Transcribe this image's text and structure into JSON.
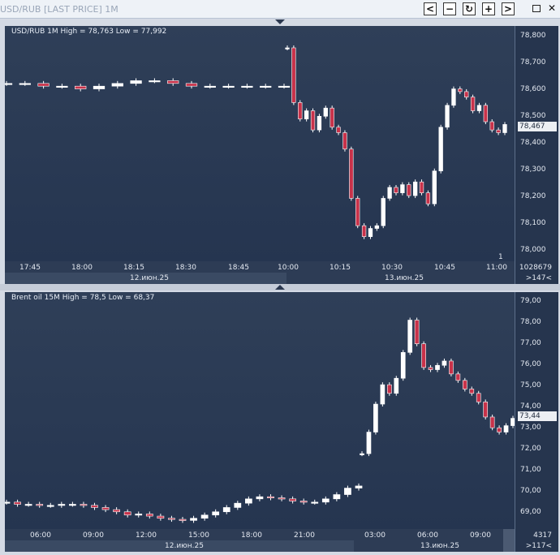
{
  "window": {
    "title": "USD/RUB [LAST PRICE]   1M",
    "buttons": {
      "back": "<",
      "minimize": "−",
      "refresh": "↻",
      "add": "+",
      "forward": ">"
    }
  },
  "top_chart": {
    "title": "USD/RUB 1M High = 78,763 Low = 77,992",
    "y_ticks": [
      "78,800",
      "78,700",
      "78,600",
      "78,500",
      "78,400",
      "78,300",
      "78,200",
      "78,100",
      "78,000"
    ],
    "price_label": "78,467",
    "corner_label": "1",
    "time_ticks": [
      "17:45",
      "18:00",
      "18:15",
      "18:30",
      "18:45",
      "10:00",
      "10:15",
      "10:30",
      "10:45",
      "11:00"
    ],
    "date_ticks": [
      "12.июн.25",
      "13.июн.25"
    ],
    "volume": "1028679",
    "count": ">147<"
  },
  "bottom_chart": {
    "title": "Brent oil 15M High = 78,5 Low = 68,37",
    "y_ticks": [
      "79,00",
      "78,00",
      "77,00",
      "76,00",
      "75,00",
      "74,00",
      "73,00",
      "72,00",
      "71,00",
      "70,00",
      "69,00"
    ],
    "price_label": "73,44",
    "time_ticks": [
      "06:00",
      "09:00",
      "12:00",
      "15:00",
      "18:00",
      "21:00",
      "03:00",
      "06:00",
      "09:00"
    ],
    "date_ticks": [
      "12.июн.25",
      "13.июн.25"
    ],
    "volume": "4317",
    "count": ">117<"
  },
  "chart_data": [
    {
      "type": "candlestick",
      "title": "USD/RUB 1M High = 78,763 Low = 77,992",
      "ylim": [
        77.97,
        78.83
      ],
      "series": [
        {
          "segment": "12.июн.25 17:40–18:55",
          "close_path": [
            78.62,
            78.62,
            78.61,
            78.61,
            78.6,
            78.61,
            78.62,
            78.63,
            78.63,
            78.62,
            78.61,
            78.61,
            78.61,
            78.61,
            78.61,
            78.61
          ]
        },
        {
          "segment": "13.июн.25 10:00–11:00",
          "close_path": [
            78.75,
            78.55,
            78.49,
            78.52,
            78.45,
            78.5,
            78.53,
            78.46,
            78.44,
            78.38,
            78.2,
            78.1,
            78.06,
            78.09,
            78.1,
            78.2,
            78.24,
            78.22,
            78.25,
            78.21,
            78.26,
            78.22,
            78.18,
            78.3,
            78.46,
            78.54,
            78.6,
            78.59,
            78.57,
            78.52,
            78.54,
            78.48,
            78.45,
            78.44,
            78.47
          ]
        }
      ]
    },
    {
      "type": "candlestick",
      "title": "Brent oil 15M High = 78,5 Low = 68,37",
      "ylim": [
        68.3,
        79.3
      ],
      "series": [
        {
          "segment": "12.июн.25 03:00–23:45",
          "close_path": [
            69.55,
            69.45,
            69.45,
            69.4,
            69.4,
            69.45,
            69.45,
            69.4,
            69.3,
            69.2,
            69.1,
            68.95,
            69.0,
            68.9,
            68.8,
            68.75,
            68.7,
            68.8,
            68.95,
            69.1,
            69.3,
            69.5,
            69.7,
            69.8,
            69.75,
            69.7,
            69.6,
            69.55,
            69.55,
            69.7,
            69.9,
            70.2,
            70.3
          ]
        },
        {
          "segment": "13.июн.25 00:00–11:00",
          "close_path": [
            71.8,
            72.8,
            74.1,
            75.0,
            74.6,
            75.3,
            76.5,
            78.0,
            76.9,
            75.8,
            75.7,
            75.9,
            76.1,
            75.5,
            75.2,
            74.8,
            74.6,
            74.2,
            73.5,
            73.0,
            72.8,
            73.1,
            73.44
          ]
        }
      ]
    }
  ]
}
